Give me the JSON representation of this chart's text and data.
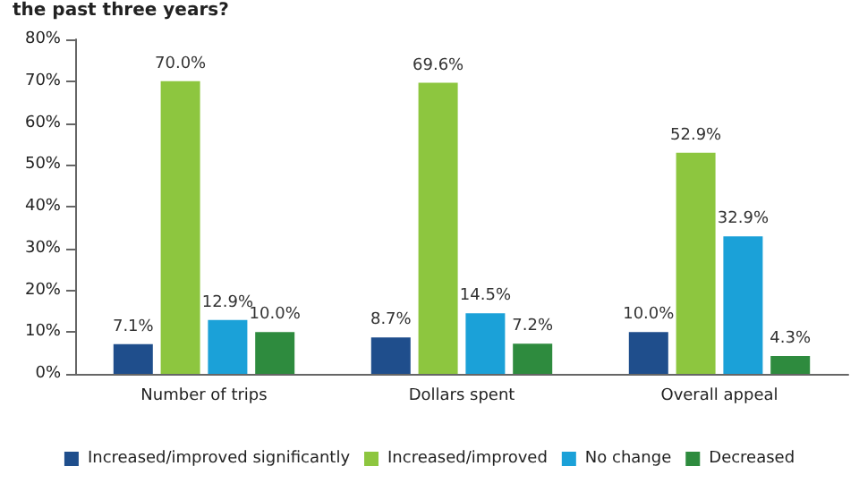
{
  "chart_data": {
    "type": "bar",
    "title": "the past three years?",
    "categories": [
      "Number of trips",
      "Dollars spent",
      "Overall appeal"
    ],
    "series": [
      {
        "name": "Increased/improved significantly",
        "color": "#1f4e8c",
        "values": [
          7.1,
          8.7,
          10.0
        ],
        "value_labels": [
          "7.1%",
          "8.7%",
          "10.0%"
        ]
      },
      {
        "name": "Increased/improved",
        "color": "#8dc63f",
        "values": [
          70.0,
          69.6,
          52.9
        ],
        "value_labels": [
          "70.0%",
          "69.6%",
          "52.9%"
        ]
      },
      {
        "name": "No change",
        "color": "#1ba1d8",
        "values": [
          12.9,
          14.5,
          32.9
        ],
        "value_labels": [
          "12.9%",
          "14.5%",
          "32.9%"
        ]
      },
      {
        "name": "Decreased",
        "color": "#2e8b3e",
        "values": [
          10.0,
          7.2,
          4.3
        ],
        "value_labels": [
          "10.0%",
          "7.2%",
          "4.3%"
        ]
      }
    ],
    "ylim": [
      0,
      80
    ],
    "yticks": [
      {
        "value": 0,
        "label": "0%"
      },
      {
        "value": 10,
        "label": "10%"
      },
      {
        "value": 20,
        "label": "20%"
      },
      {
        "value": 30,
        "label": "30%"
      },
      {
        "value": 40,
        "label": "40%"
      },
      {
        "value": 50,
        "label": "50%"
      },
      {
        "value": 60,
        "label": "60%"
      },
      {
        "value": 70,
        "label": "70%"
      },
      {
        "value": 80,
        "label": "80%"
      }
    ],
    "grid": false,
    "legend": "bottom"
  }
}
